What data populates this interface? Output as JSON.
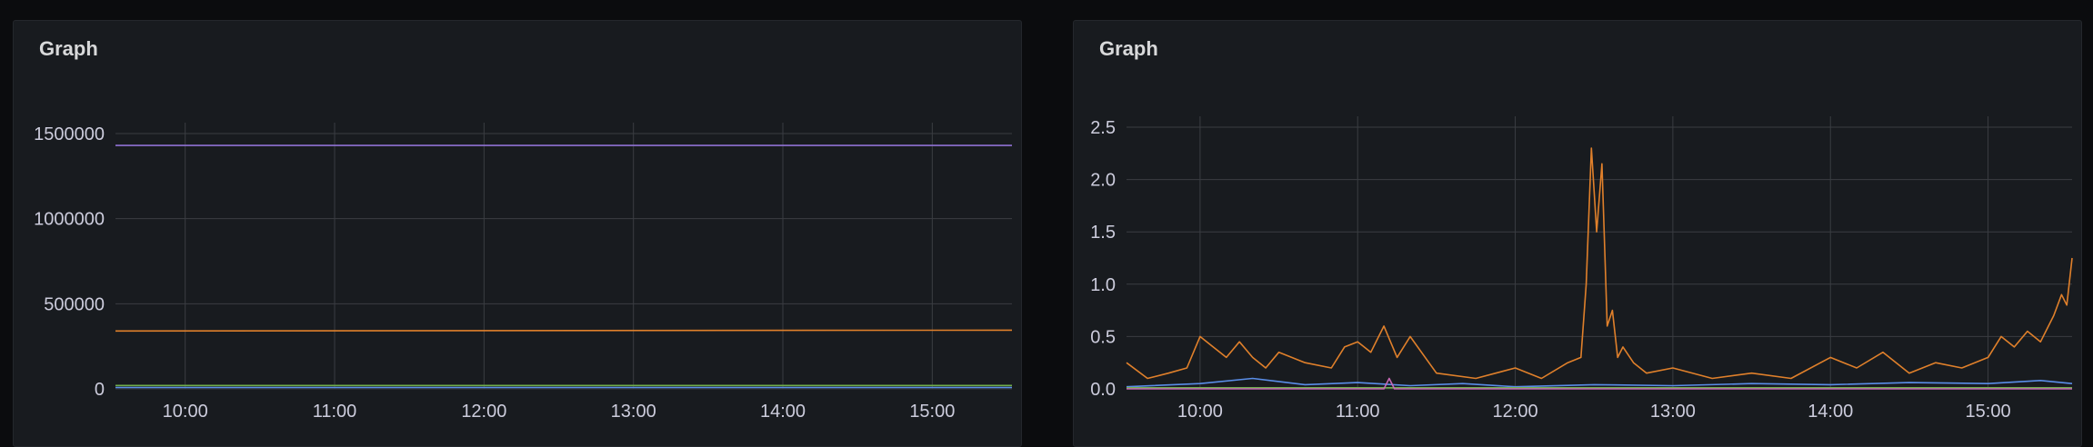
{
  "panels": [
    {
      "title": "Graph"
    },
    {
      "title": "Graph"
    }
  ],
  "colors": {
    "purple": "#8f72d4",
    "orange": "#e0802b",
    "green": "#6fae4c",
    "blue": "#5a8ee8",
    "pink": "#c668b4"
  },
  "chart_data": [
    {
      "type": "line",
      "title": "Graph",
      "x_ticks": [
        "10:00",
        "11:00",
        "12:00",
        "13:00",
        "14:00",
        "15:00"
      ],
      "y_ticks": [
        "0",
        "500000",
        "1000000",
        "1500000"
      ],
      "xlim": [
        "09:32",
        "15:32"
      ],
      "ylim": [
        0,
        1500000
      ],
      "grid": true,
      "series": [
        {
          "color": "#8f72d4",
          "x": [
            "09:32",
            "15:32"
          ],
          "values": [
            1430000,
            1430000
          ]
        },
        {
          "color": "#e0802b",
          "x": [
            "09:32",
            "15:32"
          ],
          "values": [
            340000,
            345000
          ]
        },
        {
          "color": "#6fae4c",
          "x": [
            "09:32",
            "15:32"
          ],
          "values": [
            20000,
            20000
          ]
        },
        {
          "color": "#5a8ee8",
          "x": [
            "09:32",
            "15:32"
          ],
          "values": [
            8000,
            8000
          ]
        }
      ]
    },
    {
      "type": "line",
      "title": "Graph",
      "x_ticks": [
        "10:00",
        "11:00",
        "12:00",
        "13:00",
        "14:00",
        "15:00"
      ],
      "y_ticks": [
        "0.0",
        "0.5",
        "1.0",
        "1.5",
        "2.0",
        "2.5"
      ],
      "xlim": [
        "09:32",
        "15:32"
      ],
      "ylim": [
        0,
        2.5
      ],
      "grid": true,
      "series": [
        {
          "color": "#e0802b",
          "x": [
            "09:32",
            "09:40",
            "09:48",
            "09:55",
            "10:00",
            "10:05",
            "10:10",
            "10:15",
            "10:20",
            "10:25",
            "10:30",
            "10:40",
            "10:50",
            "10:55",
            "11:00",
            "11:05",
            "11:10",
            "11:15",
            "11:20",
            "11:30",
            "11:45",
            "12:00",
            "12:10",
            "12:20",
            "12:25",
            "12:27",
            "12:29",
            "12:31",
            "12:33",
            "12:35",
            "12:37",
            "12:39",
            "12:41",
            "12:45",
            "12:50",
            "13:00",
            "13:15",
            "13:30",
            "13:45",
            "14:00",
            "14:10",
            "14:20",
            "14:30",
            "14:40",
            "14:50",
            "15:00",
            "15:05",
            "15:10",
            "15:15",
            "15:20",
            "15:25",
            "15:28",
            "15:30",
            "15:32"
          ],
          "values": [
            0.25,
            0.1,
            0.15,
            0.2,
            0.5,
            0.4,
            0.3,
            0.45,
            0.3,
            0.2,
            0.35,
            0.25,
            0.2,
            0.4,
            0.45,
            0.35,
            0.6,
            0.3,
            0.5,
            0.15,
            0.1,
            0.2,
            0.1,
            0.25,
            0.3,
            1.0,
            2.3,
            1.5,
            2.15,
            0.6,
            0.75,
            0.3,
            0.4,
            0.25,
            0.15,
            0.2,
            0.1,
            0.15,
            0.1,
            0.3,
            0.2,
            0.35,
            0.15,
            0.25,
            0.2,
            0.3,
            0.5,
            0.4,
            0.55,
            0.45,
            0.7,
            0.9,
            0.8,
            1.25
          ]
        },
        {
          "color": "#5a8ee8",
          "x": [
            "09:32",
            "10:00",
            "10:20",
            "10:40",
            "11:00",
            "11:20",
            "11:40",
            "12:00",
            "12:30",
            "13:00",
            "13:30",
            "14:00",
            "14:30",
            "15:00",
            "15:20",
            "15:32"
          ],
          "values": [
            0.02,
            0.05,
            0.1,
            0.04,
            0.06,
            0.03,
            0.05,
            0.02,
            0.04,
            0.03,
            0.05,
            0.04,
            0.06,
            0.05,
            0.08,
            0.05
          ]
        },
        {
          "color": "#6fae4c",
          "x": [
            "09:32",
            "12:00",
            "15:32"
          ],
          "values": [
            0.01,
            0.01,
            0.01
          ]
        },
        {
          "color": "#c668b4",
          "x": [
            "09:32",
            "11:10",
            "11:12",
            "11:14",
            "15:32"
          ],
          "values": [
            0.0,
            0.0,
            0.1,
            0.0,
            0.0
          ]
        }
      ]
    }
  ]
}
